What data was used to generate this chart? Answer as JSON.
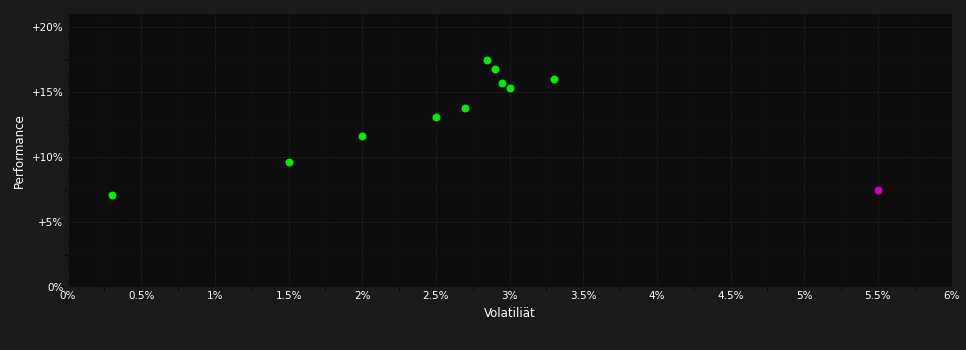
{
  "background_color": "#1a1a1a",
  "plot_bg_color": "#0d0d0d",
  "grid_color": "#3a3a3a",
  "text_color": "#ffffff",
  "xlabel": "Volatiliät",
  "ylabel": "Performance",
  "xlim": [
    0.0,
    0.06
  ],
  "ylim": [
    0.0,
    0.21
  ],
  "xtick_labels": [
    "0%",
    "0.5%",
    "1%",
    "1.5%",
    "2%",
    "2.5%",
    "3%",
    "3.5%",
    "4%",
    "4.5%",
    "5%",
    "5.5%",
    "6%"
  ],
  "xtick_values": [
    0.0,
    0.005,
    0.01,
    0.015,
    0.02,
    0.025,
    0.03,
    0.035,
    0.04,
    0.045,
    0.05,
    0.055,
    0.06
  ],
  "ytick_labels": [
    "0%",
    "+5%",
    "+10%",
    "+15%",
    "+20%"
  ],
  "ytick_values": [
    0.0,
    0.05,
    0.1,
    0.15,
    0.2
  ],
  "green_points": [
    [
      0.003,
      0.071
    ],
    [
      0.015,
      0.096
    ],
    [
      0.02,
      0.116
    ],
    [
      0.025,
      0.131
    ],
    [
      0.027,
      0.138
    ],
    [
      0.0285,
      0.175
    ],
    [
      0.029,
      0.168
    ],
    [
      0.0295,
      0.157
    ],
    [
      0.03,
      0.153
    ],
    [
      0.033,
      0.16
    ]
  ],
  "magenta_points": [
    [
      0.055,
      0.075
    ]
  ],
  "green_color": "#00ee00",
  "magenta_color": "#cc00cc",
  "marker_size": 22
}
